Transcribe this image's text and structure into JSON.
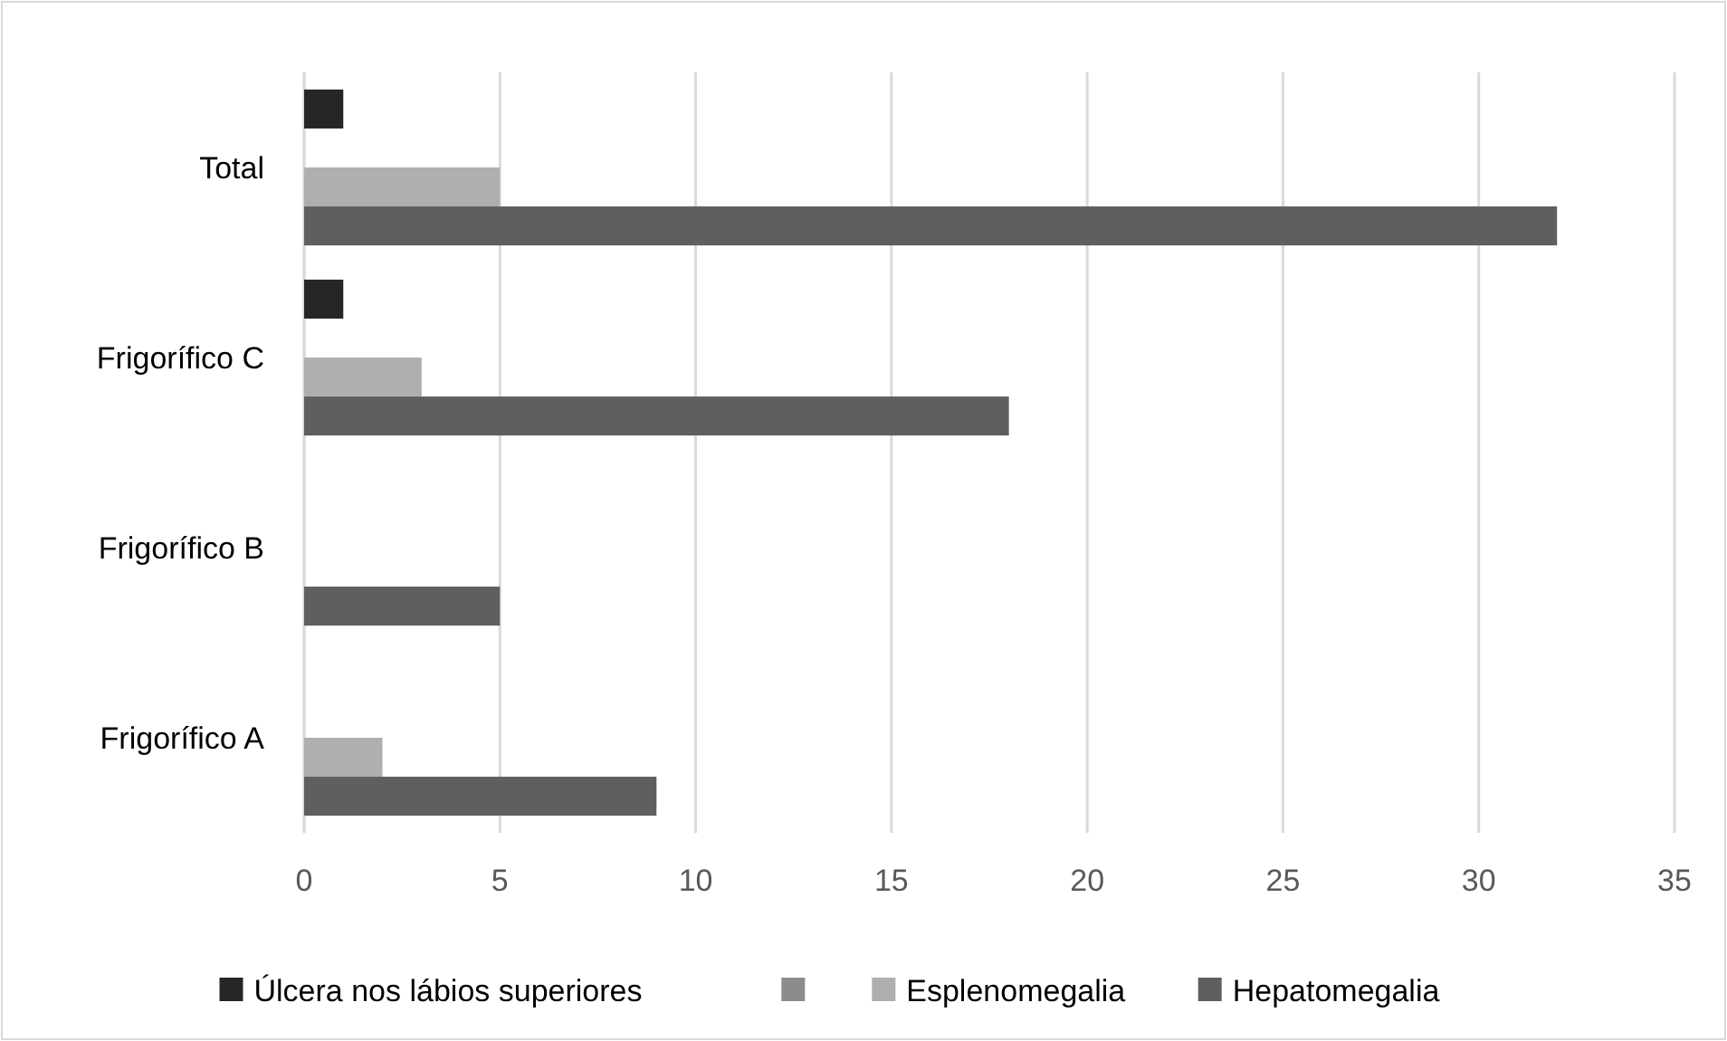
{
  "chart_data": {
    "type": "bar",
    "orientation": "horizontal",
    "categories": [
      "Total",
      "Frigorífico C",
      "Frigorífico B",
      "Frigorífico A"
    ],
    "series": [
      {
        "name": "Úlcera nos lábios superiores",
        "color": "#262626",
        "values": [
          1,
          1,
          null,
          null
        ]
      },
      {
        "color": "#8c8c8c",
        "values": [
          null,
          null,
          null,
          null
        ]
      },
      {
        "name": "Esplenomegalia",
        "color": "#afafaf",
        "values": [
          5,
          3,
          null,
          2
        ]
      },
      {
        "name": "Hepatomegalia",
        "color": "#5f5f5f",
        "values": [
          32,
          18,
          5,
          9
        ]
      }
    ],
    "xlim": [
      0,
      35
    ],
    "xticks": [
      0,
      5,
      10,
      15,
      20,
      25,
      30,
      35
    ],
    "grid": "x",
    "legend": "bottom"
  }
}
